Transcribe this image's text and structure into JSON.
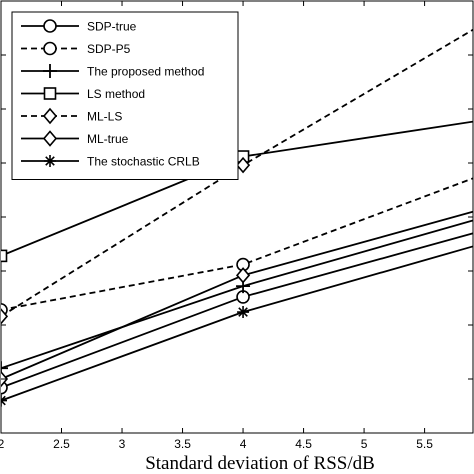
{
  "chart_data": {
    "type": "line",
    "xlabel": "Standard deviation of RSS/dB",
    "ylabel": "",
    "title": "",
    "xlim": [
      2,
      5.9
    ],
    "ylim": [
      0,
      1
    ],
    "x_ticks": [
      "2",
      "2.5",
      "3",
      "3.5",
      "4",
      "4.5",
      "5",
      "5.5"
    ],
    "x_tick_values": [
      2,
      2.5,
      3,
      3.5,
      4,
      4.5,
      5,
      5.5
    ],
    "grid": false,
    "legend_position": "top-left",
    "series": [
      {
        "name": "SDP-true",
        "marker": "circle",
        "dash": false,
        "x": [
          2,
          4,
          6
        ],
        "y": [
          0.105,
          0.315,
          0.47
        ]
      },
      {
        "name": "SDP-P5",
        "marker": "circle",
        "dash": true,
        "x": [
          2,
          4,
          6
        ],
        "y": [
          0.285,
          0.39,
          0.6
        ]
      },
      {
        "name": "The proposed method",
        "marker": "plus",
        "dash": false,
        "x": [
          2,
          4,
          6
        ],
        "y": [
          0.15,
          0.34,
          0.5
        ]
      },
      {
        "name": "LS method",
        "marker": "square",
        "dash": false,
        "x": [
          2,
          4,
          6
        ],
        "y": [
          0.41,
          0.64,
          0.725
        ]
      },
      {
        "name": "ML-LS",
        "marker": "diamond",
        "dash": true,
        "x": [
          2,
          4,
          6
        ],
        "y": [
          0.27,
          0.62,
          0.95
        ]
      },
      {
        "name": "ML-true",
        "marker": "diamond",
        "dash": false,
        "x": [
          2,
          4,
          6
        ],
        "y": [
          0.125,
          0.365,
          0.52
        ]
      },
      {
        "name": "The stochastic CRLB",
        "marker": "star",
        "dash": false,
        "x": [
          2,
          4,
          6
        ],
        "y": [
          0.075,
          0.28,
          0.44
        ]
      }
    ]
  }
}
